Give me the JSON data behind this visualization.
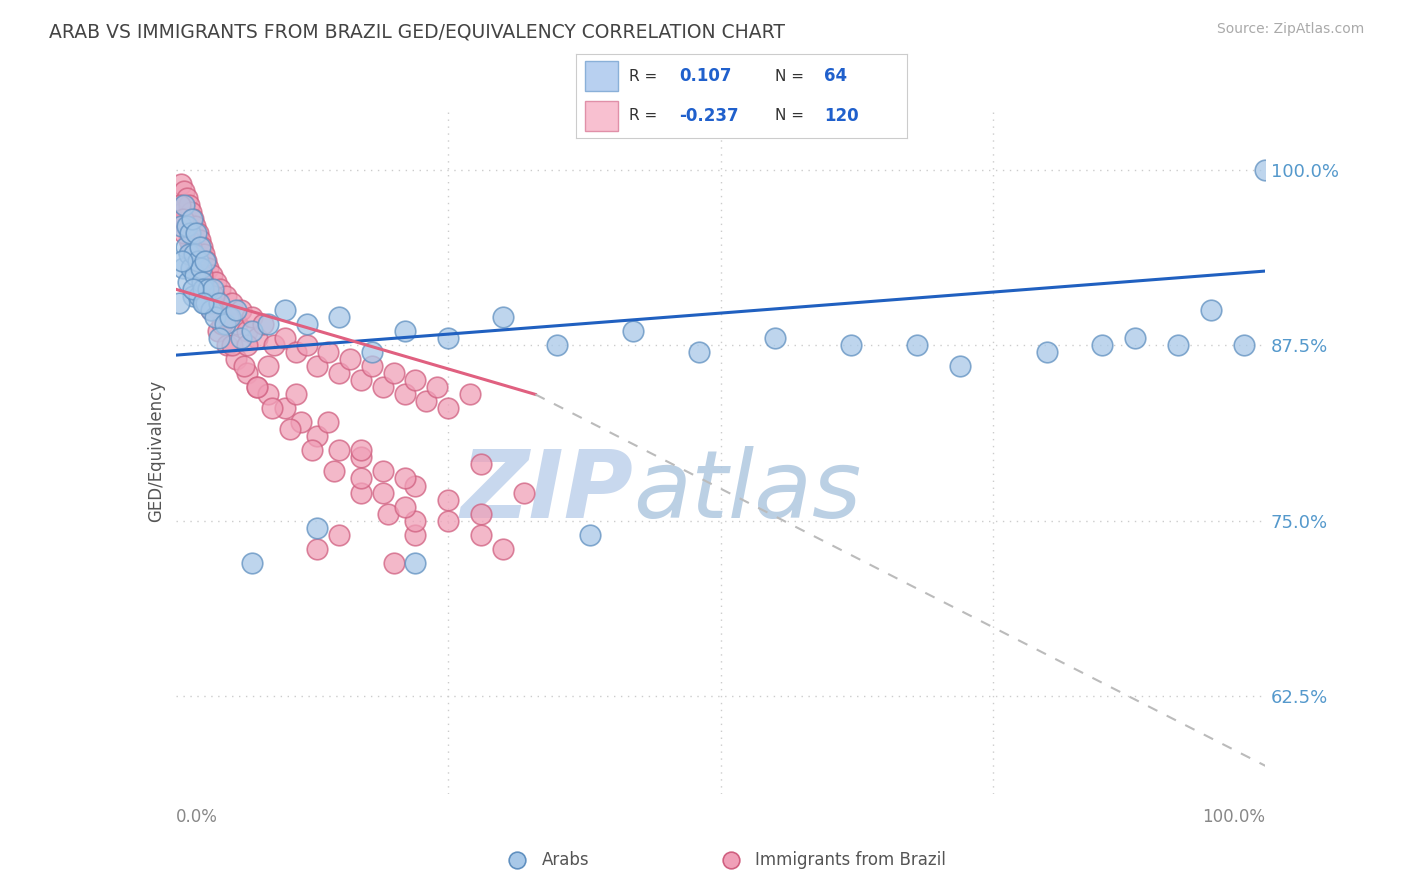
{
  "title": "ARAB VS IMMIGRANTS FROM BRAZIL GED/EQUIVALENCY CORRELATION CHART",
  "source": "Source: ZipAtlas.com",
  "ylabel": "GED/Equivalency",
  "y_tick_labels": [
    "62.5%",
    "75.0%",
    "87.5%",
    "100.0%"
  ],
  "y_tick_values": [
    0.625,
    0.75,
    0.875,
    1.0
  ],
  "x_range": [
    0.0,
    1.0
  ],
  "y_range": [
    0.555,
    1.045
  ],
  "arab_color": "#a8c8e8",
  "brazil_color": "#f0a0b8",
  "arab_edge": "#6090c0",
  "brazil_edge": "#d06080",
  "arab_R": 0.107,
  "arab_N": 64,
  "brazil_R": -0.237,
  "brazil_N": 120,
  "background_color": "#ffffff",
  "grid_color": "#cccccc",
  "title_color": "#555555",
  "arab_line_color": "#2060c0",
  "brazil_line_solid_color": "#e06080",
  "brazil_line_dash_color": "#bbbbbb",
  "watermark_zip_color": "#c8d8ee",
  "watermark_atlas_color": "#b0c8e0",
  "arab_scatter_x": [
    0.005,
    0.007,
    0.008,
    0.009,
    0.01,
    0.011,
    0.012,
    0.013,
    0.014,
    0.015,
    0.016,
    0.017,
    0.018,
    0.019,
    0.02,
    0.021,
    0.022,
    0.023,
    0.024,
    0.025,
    0.026,
    0.027,
    0.028,
    0.03,
    0.032,
    0.034,
    0.036,
    0.04,
    0.045,
    0.05,
    0.055,
    0.06,
    0.07,
    0.085,
    0.1,
    0.12,
    0.15,
    0.18,
    0.21,
    0.25,
    0.3,
    0.35,
    0.42,
    0.48,
    0.55,
    0.62,
    0.68,
    0.72,
    0.8,
    0.85,
    0.88,
    0.92,
    0.95,
    0.98,
    1.0,
    0.003,
    0.006,
    0.016,
    0.025,
    0.04,
    0.07,
    0.13,
    0.22,
    0.38
  ],
  "arab_scatter_y": [
    0.96,
    0.93,
    0.975,
    0.945,
    0.96,
    0.92,
    0.94,
    0.955,
    0.93,
    0.965,
    0.91,
    0.94,
    0.925,
    0.955,
    0.935,
    0.91,
    0.945,
    0.93,
    0.92,
    0.915,
    0.905,
    0.935,
    0.905,
    0.915,
    0.9,
    0.915,
    0.895,
    0.905,
    0.89,
    0.895,
    0.9,
    0.88,
    0.885,
    0.89,
    0.9,
    0.89,
    0.895,
    0.87,
    0.885,
    0.88,
    0.895,
    0.875,
    0.885,
    0.87,
    0.88,
    0.875,
    0.875,
    0.86,
    0.87,
    0.875,
    0.88,
    0.875,
    0.9,
    0.875,
    1.0,
    0.905,
    0.935,
    0.915,
    0.905,
    0.88,
    0.72,
    0.745,
    0.72,
    0.74
  ],
  "brazil_scatter_x": [
    0.003,
    0.005,
    0.007,
    0.008,
    0.009,
    0.01,
    0.011,
    0.012,
    0.013,
    0.014,
    0.015,
    0.016,
    0.017,
    0.018,
    0.019,
    0.02,
    0.021,
    0.022,
    0.023,
    0.024,
    0.025,
    0.026,
    0.027,
    0.028,
    0.029,
    0.03,
    0.031,
    0.033,
    0.035,
    0.037,
    0.039,
    0.041,
    0.043,
    0.046,
    0.049,
    0.052,
    0.056,
    0.06,
    0.065,
    0.07,
    0.075,
    0.08,
    0.09,
    0.1,
    0.11,
    0.12,
    0.13,
    0.14,
    0.15,
    0.16,
    0.17,
    0.18,
    0.19,
    0.2,
    0.21,
    0.22,
    0.23,
    0.24,
    0.25,
    0.27,
    0.004,
    0.009,
    0.014,
    0.019,
    0.025,
    0.032,
    0.039,
    0.047,
    0.055,
    0.065,
    0.075,
    0.085,
    0.1,
    0.115,
    0.13,
    0.15,
    0.17,
    0.19,
    0.22,
    0.25,
    0.28,
    0.007,
    0.012,
    0.018,
    0.025,
    0.033,
    0.042,
    0.052,
    0.063,
    0.075,
    0.088,
    0.105,
    0.125,
    0.145,
    0.17,
    0.195,
    0.22,
    0.008,
    0.015,
    0.024,
    0.035,
    0.048,
    0.065,
    0.085,
    0.11,
    0.14,
    0.17,
    0.21,
    0.13,
    0.28,
    0.32,
    0.17,
    0.22,
    0.19,
    0.28,
    0.21,
    0.3,
    0.25,
    0.2,
    0.15
  ],
  "brazil_scatter_y": [
    0.975,
    0.99,
    0.97,
    0.985,
    0.965,
    0.98,
    0.96,
    0.975,
    0.955,
    0.97,
    0.95,
    0.965,
    0.945,
    0.96,
    0.94,
    0.955,
    0.935,
    0.95,
    0.93,
    0.945,
    0.925,
    0.94,
    0.92,
    0.935,
    0.915,
    0.93,
    0.91,
    0.925,
    0.905,
    0.92,
    0.9,
    0.915,
    0.895,
    0.91,
    0.895,
    0.905,
    0.89,
    0.9,
    0.885,
    0.895,
    0.88,
    0.89,
    0.875,
    0.88,
    0.87,
    0.875,
    0.86,
    0.87,
    0.855,
    0.865,
    0.85,
    0.86,
    0.845,
    0.855,
    0.84,
    0.85,
    0.835,
    0.845,
    0.83,
    0.84,
    0.975,
    0.96,
    0.945,
    0.93,
    0.915,
    0.9,
    0.885,
    0.875,
    0.865,
    0.855,
    0.845,
    0.84,
    0.83,
    0.82,
    0.81,
    0.8,
    0.795,
    0.785,
    0.775,
    0.765,
    0.755,
    0.965,
    0.95,
    0.935,
    0.92,
    0.905,
    0.89,
    0.875,
    0.86,
    0.845,
    0.83,
    0.815,
    0.8,
    0.785,
    0.77,
    0.755,
    0.74,
    0.955,
    0.94,
    0.925,
    0.91,
    0.895,
    0.875,
    0.86,
    0.84,
    0.82,
    0.8,
    0.78,
    0.73,
    0.79,
    0.77,
    0.78,
    0.75,
    0.77,
    0.74,
    0.76,
    0.73,
    0.75,
    0.72,
    0.74
  ]
}
